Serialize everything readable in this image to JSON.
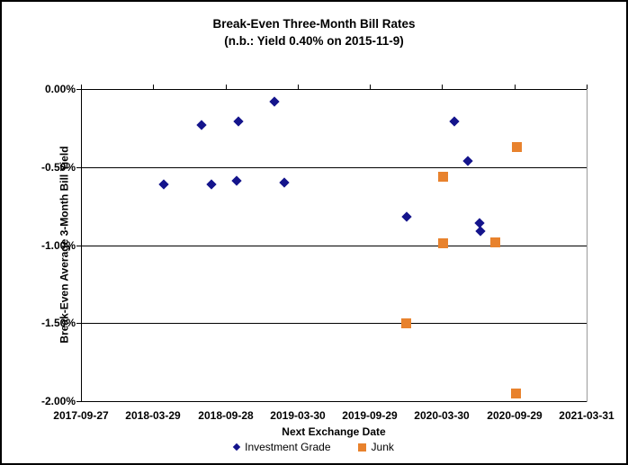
{
  "title": {
    "line1": "Break-Even Three-Month Bill Rates",
    "line2": "(n.b.: Yield 0.40% on 2015-11-9)"
  },
  "colors": {
    "investment_grade": "#14148C",
    "junk": "#E8822D",
    "gridline": "#000000",
    "plot_border": "#9A9A9A",
    "background": "#FFFFFF"
  },
  "chart_data": {
    "type": "scatter",
    "title": "Break-Even Three-Month Bill Rates (n.b.: Yield 0.40% on 2015-11-9)",
    "xlabel": "Next Exchange Date",
    "ylabel": "Break-Even Average 3-Month Bill Yield",
    "grid": "horizontal-major",
    "legend_position": "bottom",
    "x_axis": {
      "min": "2017-09-27",
      "max": "2021-03-31",
      "tick_labels": [
        "2017-09-27",
        "2018-03-29",
        "2018-09-28",
        "2019-03-30",
        "2019-09-29",
        "2020-03-30",
        "2020-09-29",
        "2021-03-31"
      ]
    },
    "y_axis": {
      "min": -2.0,
      "max": 0.0,
      "ticks": [
        {
          "label": "0.00%",
          "value": 0.0
        },
        {
          "label": "-0.50%",
          "value": -0.5
        },
        {
          "label": "-1.00%",
          "value": -1.0
        },
        {
          "label": "-1.50%",
          "value": -1.5
        },
        {
          "label": "-2.00%",
          "value": -2.0
        }
      ]
    },
    "series": [
      {
        "name": "Investment Grade",
        "marker": "diamond",
        "color": "#14148C",
        "points": [
          {
            "x": "2018-04-25",
            "y": -0.61
          },
          {
            "x": "2018-07-29",
            "y": -0.23
          },
          {
            "x": "2018-08-23",
            "y": -0.61
          },
          {
            "x": "2018-10-27",
            "y": -0.59
          },
          {
            "x": "2018-11-01",
            "y": -0.21
          },
          {
            "x": "2019-01-29",
            "y": -0.08
          },
          {
            "x": "2019-02-23",
            "y": -0.6
          },
          {
            "x": "2019-12-31",
            "y": -0.82
          },
          {
            "x": "2020-04-29",
            "y": -0.21
          },
          {
            "x": "2020-06-04",
            "y": -0.46
          },
          {
            "x": "2020-07-03",
            "y": -0.86
          },
          {
            "x": "2020-07-05",
            "y": -0.91
          }
        ]
      },
      {
        "name": "Junk",
        "marker": "square",
        "color": "#E8822D",
        "points": [
          {
            "x": "2019-12-31",
            "y": -1.5
          },
          {
            "x": "2020-04-01",
            "y": -0.56
          },
          {
            "x": "2020-04-02",
            "y": -0.99
          },
          {
            "x": "2020-08-12",
            "y": -0.98
          },
          {
            "x": "2020-10-04",
            "y": -1.95
          },
          {
            "x": "2020-10-05",
            "y": -0.37
          }
        ]
      }
    ]
  }
}
